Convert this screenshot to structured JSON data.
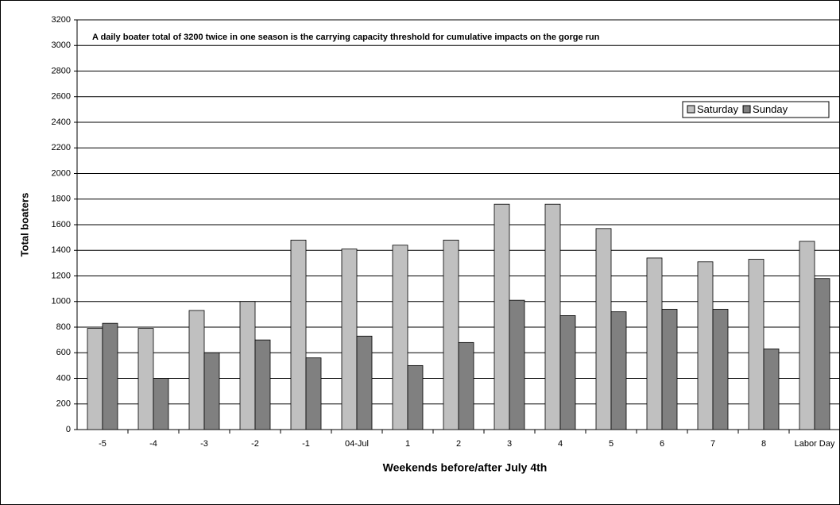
{
  "chart_data": {
    "type": "bar",
    "annotation": "A daily boater total of 3200 twice in one season is the carrying capacity threshold for cumulative impacts on the gorge run",
    "x_label": "Weekends before/after July 4th",
    "y_label": "Total boaters",
    "categories": [
      "-5",
      "-4",
      "-3",
      "-2",
      "-1",
      "04-Jul",
      "1",
      "2",
      "3",
      "4",
      "5",
      "6",
      "7",
      "8",
      "Labor Day"
    ],
    "series": [
      {
        "name": "Saturday",
        "color": "#c0c0c0",
        "values": [
          790,
          790,
          930,
          1000,
          1480,
          1410,
          1440,
          1480,
          1760,
          1760,
          1570,
          1340,
          1310,
          1330,
          1470
        ]
      },
      {
        "name": "Sunday",
        "color": "#808080",
        "values": [
          830,
          400,
          600,
          700,
          560,
          730,
          500,
          680,
          1010,
          890,
          920,
          940,
          940,
          630,
          1180
        ]
      }
    ],
    "ylim": [
      0,
      3200
    ],
    "yticks": [
      0,
      200,
      400,
      600,
      800,
      1000,
      1200,
      1400,
      1600,
      1800,
      2000,
      2200,
      2400,
      2600,
      2800,
      3000,
      3200
    ],
    "grid": true,
    "legend": "top-right"
  }
}
